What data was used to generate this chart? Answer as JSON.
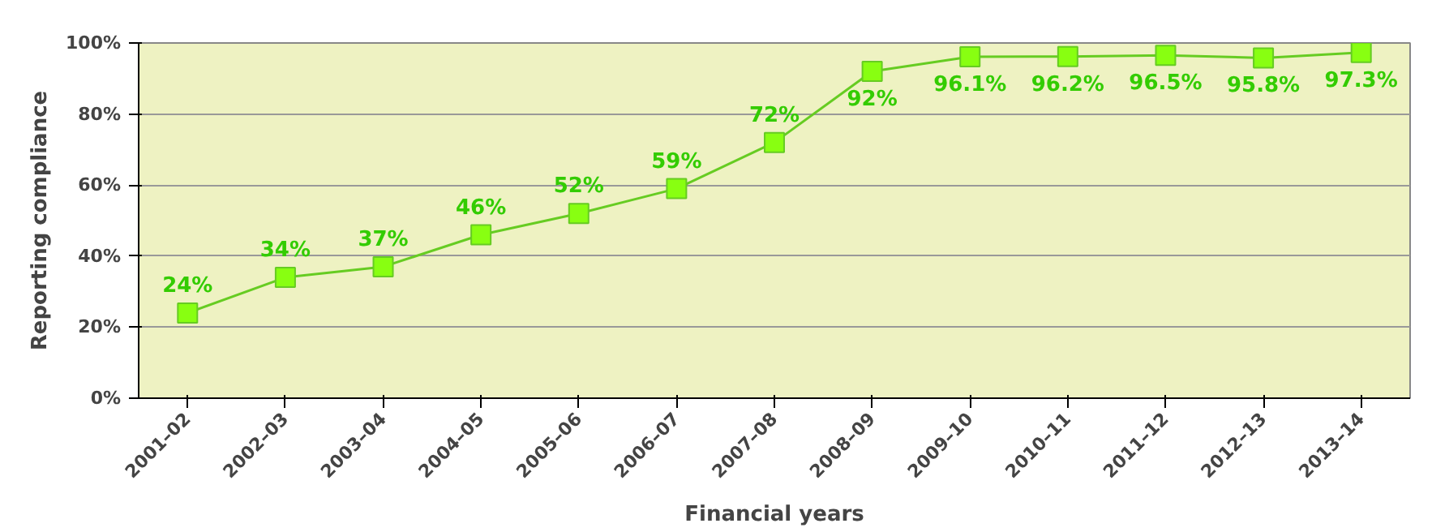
{
  "chart_data": {
    "type": "line",
    "xlabel": "Financial years",
    "ylabel": "Reporting compliance",
    "categories": [
      "2001–02",
      "2002–03",
      "2003–04",
      "2004–05",
      "2005–06",
      "2006–07",
      "2007–08",
      "2008–09",
      "2009–10",
      "2010–11",
      "2011–12",
      "2012–13",
      "2013–14"
    ],
    "series": [
      {
        "color": "#66cc22",
        "values": [
          24,
          34,
          37,
          46,
          52,
          59,
          72,
          92,
          96.1,
          96.2,
          96.5,
          95.8,
          97.3
        ],
        "value_labels": [
          "24%",
          "34%",
          "37%",
          "46%",
          "52%",
          "59%",
          "72%",
          "92%",
          "96.1%",
          "96.2%",
          "96.5%",
          "95.8%",
          "97.3%"
        ]
      }
    ],
    "ylim": [
      0,
      100
    ],
    "yticks": [
      {
        "value": 0,
        "label": "0%"
      },
      {
        "value": 20,
        "label": "20%"
      },
      {
        "value": 40,
        "label": "40%"
      },
      {
        "value": 60,
        "label": "60%"
      },
      {
        "value": 80,
        "label": "80%"
      },
      {
        "value": 100,
        "label": "100%"
      }
    ],
    "grid": "y",
    "marker": "square",
    "line_style": "solid"
  }
}
